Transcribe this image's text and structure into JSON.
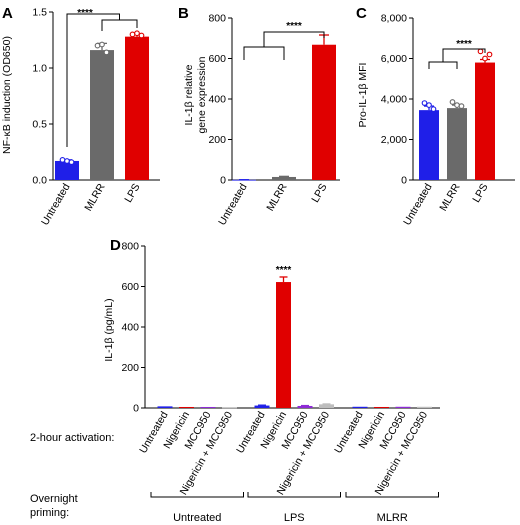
{
  "colors": {
    "untreated": "#1f1fe8",
    "mlrr": "#6a6a6a",
    "lps": "#e00000",
    "mcc950": "#8e2bd6",
    "combo": "#bdbdbd"
  },
  "chart_data": [
    {
      "panel": "A",
      "type": "bar",
      "ylabel": "NF-κB induction (OD650)",
      "ylim": [
        0,
        1.5
      ],
      "yticks": [
        "0.0",
        "0.5",
        "1.0",
        "1.5"
      ],
      "categories": [
        "Untreated",
        "MLRR",
        "LPS"
      ],
      "values": [
        0.17,
        1.16,
        1.28
      ],
      "errors": [
        0.01,
        0.06,
        0.02
      ],
      "points": [
        [
          0.18,
          0.17,
          0.16
        ],
        [
          1.2,
          1.21,
          1.14
        ],
        [
          1.3,
          1.31,
          1.29
        ]
      ],
      "significance": "****"
    },
    {
      "panel": "B",
      "type": "bar",
      "ylabel": "IL-1β relative gene expression",
      "ylabel_lines": [
        "IL-1β relative",
        "gene expression"
      ],
      "ylim": [
        0,
        800
      ],
      "yticks": [
        "0",
        "200",
        "400",
        "600",
        "800"
      ],
      "categories": [
        "Untreated",
        "MLRR",
        "LPS"
      ],
      "values": [
        1,
        15,
        668
      ],
      "errors": [
        0.5,
        3,
        48
      ],
      "significance": "****"
    },
    {
      "panel": "C",
      "type": "bar",
      "ylabel": "Pro-IL-1β MFI",
      "ylim": [
        0,
        8000
      ],
      "yticks": [
        "0",
        "2,000",
        "4,000",
        "6,000",
        "8,000"
      ],
      "categories": [
        "Untreated",
        "MLRR",
        "LPS"
      ],
      "values": [
        3450,
        3550,
        5800
      ],
      "errors": [
        200,
        150,
        150
      ],
      "points": [
        [
          3800,
          3700,
          3500
        ],
        [
          3850,
          3700,
          3650
        ],
        [
          6350,
          6000,
          6200
        ]
      ],
      "significance": "****"
    },
    {
      "panel": "D",
      "type": "bar",
      "ylabel": "IL-1β (pg/mL)",
      "ylim": [
        0,
        800
      ],
      "yticks": [
        "0",
        "200",
        "400",
        "600",
        "800"
      ],
      "row_label_1": "2-hour activation:",
      "row_label_2": [
        "Overnight",
        "priming:"
      ],
      "groups": [
        {
          "priming": "Untreated",
          "categories": [
            "Untreated",
            "Nigericin",
            "MCC950",
            "Nigericin + MCC950"
          ],
          "values": [
            8,
            5,
            5,
            4
          ]
        },
        {
          "priming": "LPS",
          "categories": [
            "Untreated",
            "Nigericin",
            "MCC950",
            "Nigericin + MCC950"
          ],
          "values": [
            12,
            622,
            10,
            18
          ],
          "errors": [
            2,
            25,
            2,
            2
          ]
        },
        {
          "priming": "MLRR",
          "categories": [
            "Untreated",
            "Nigericin",
            "MCC950",
            "Nigericin + MCC950"
          ],
          "values": [
            6,
            5,
            6,
            6
          ]
        }
      ],
      "significance": "****"
    }
  ]
}
